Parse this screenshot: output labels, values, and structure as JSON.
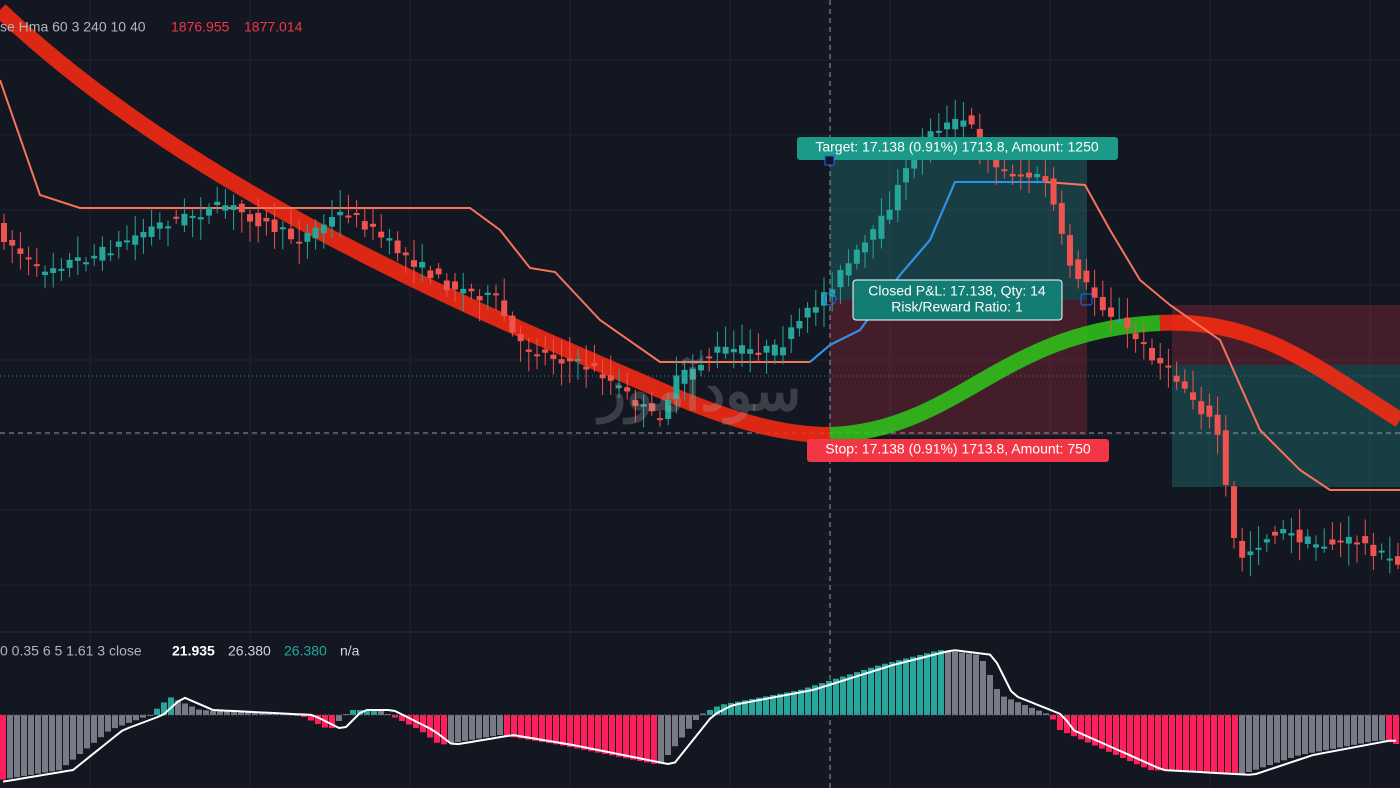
{
  "legend": {
    "indicator": "se Hma 60 3 240 10 40",
    "value_1": "1876.955",
    "value_2": "1877.014"
  },
  "position": {
    "target": "Target: 17.138 (0.91%) 1713.8, Amount: 1250",
    "closed_pnl": "Closed P&L: 17.138, Qty: 14",
    "risk_reward": "Risk/Reward Ratio: 1",
    "stop": "Stop: 17.138 (0.91%) 1713.8, Amount: 750"
  },
  "watermark": "سودآموز",
  "oscillator": {
    "settings": "0 0.35 6 5 1.61 3 close",
    "value_1": "21.935",
    "value_2": "26.380",
    "value_3": "26.380",
    "value_4": "n/a"
  }
}
